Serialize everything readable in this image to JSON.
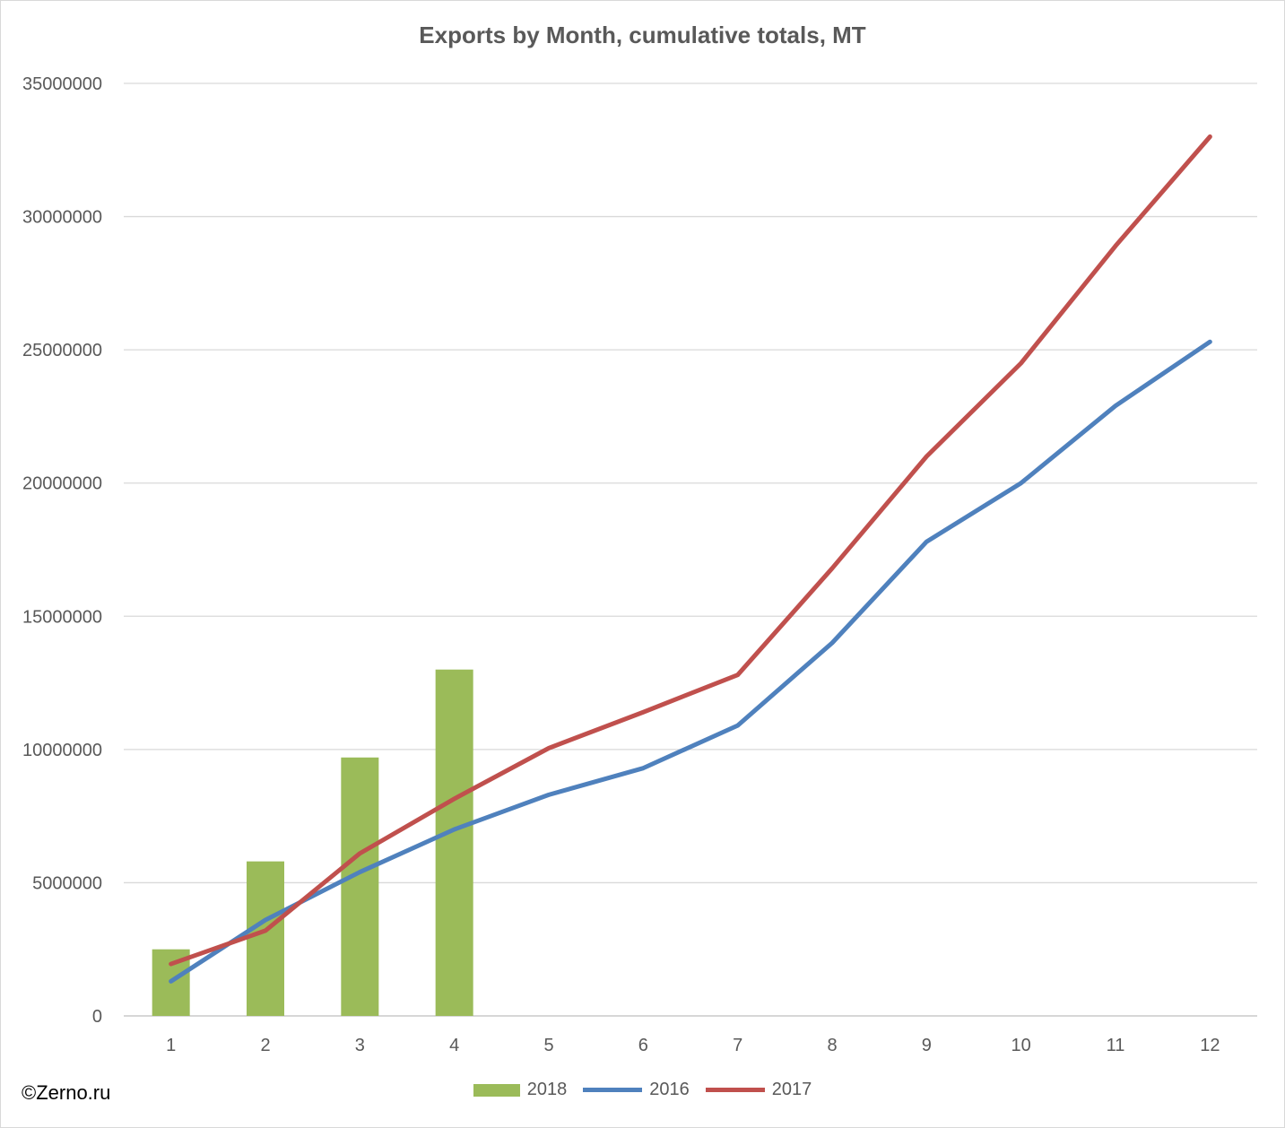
{
  "chart_data": {
    "type": "bar+line",
    "title": "Exports by Month, cumulative totals, MT",
    "xlabel": "",
    "ylabel": "",
    "categories": [
      "1",
      "2",
      "3",
      "4",
      "5",
      "6",
      "7",
      "8",
      "9",
      "10",
      "11",
      "12"
    ],
    "ylim": [
      0,
      35000000
    ],
    "yticks": [
      "0",
      "5000000",
      "10000000",
      "15000000",
      "20000000",
      "25000000",
      "30000000",
      "35000000"
    ],
    "grid": true,
    "legend": "bottom",
    "series": [
      {
        "name": "2018",
        "type": "bar",
        "color": "#9bbb59",
        "values": [
          2500000,
          5800000,
          9700000,
          13000000,
          null,
          null,
          null,
          null,
          null,
          null,
          null,
          null
        ]
      },
      {
        "name": "2016",
        "type": "line",
        "color": "#4f81bd",
        "values": [
          1300000,
          3600000,
          5400000,
          7000000,
          8300000,
          9300000,
          10900000,
          14000000,
          17800000,
          20000000,
          22900000,
          25300000
        ]
      },
      {
        "name": "2017",
        "type": "line",
        "color": "#c0504d",
        "values": [
          1950000,
          3200000,
          6100000,
          8150000,
          10050000,
          11400000,
          12800000,
          16800000,
          21000000,
          24500000,
          28900000,
          33000000
        ]
      }
    ]
  },
  "watermark": "©Zerno.ru"
}
